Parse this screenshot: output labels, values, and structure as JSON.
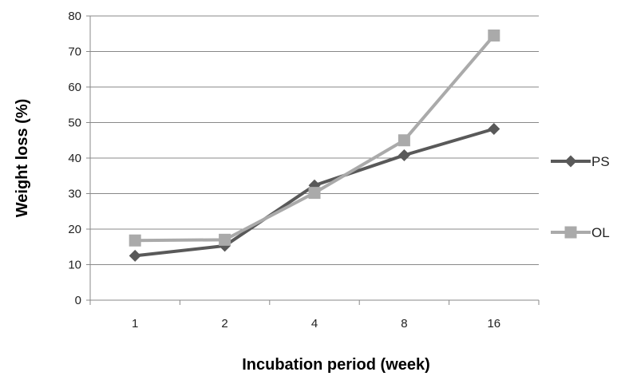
{
  "chart_data": {
    "type": "line",
    "title": "",
    "xlabel": "Incubation period (week)",
    "ylabel": "Weight loss (%)",
    "categories": [
      "1",
      "2",
      "4",
      "8",
      "16"
    ],
    "ylim": [
      0,
      80
    ],
    "yticks": [
      "0",
      "10",
      "20",
      "30",
      "40",
      "50",
      "60",
      "70",
      "80"
    ],
    "grid": true,
    "legend_position": "right",
    "series": [
      {
        "name": "PS",
        "values": [
          12.5,
          15.3,
          32.3,
          40.8,
          48.2
        ],
        "marker": "diamond",
        "color": "#595959"
      },
      {
        "name": "OL",
        "values": [
          16.8,
          17.0,
          30.2,
          45.0,
          74.5
        ],
        "marker": "square",
        "color": "#aaaaaa"
      }
    ]
  }
}
